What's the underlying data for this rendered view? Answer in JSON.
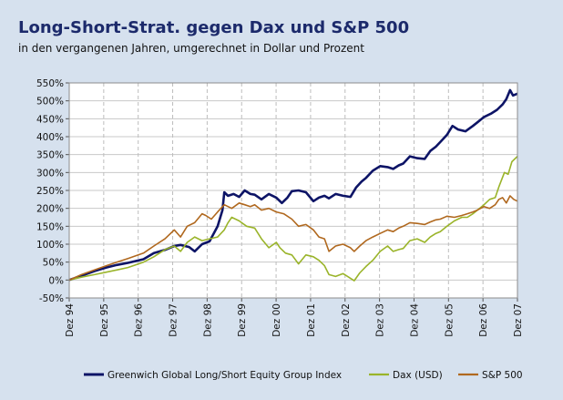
{
  "chart_data": {
    "type": "line",
    "title": "Long-Short-Strat. gegen Dax und S&P 500",
    "subtitle": "in den vergangenen Jahren, umgerechnet in Dollar und Prozent",
    "xlabel": "",
    "ylabel": "",
    "x_ticks": [
      "Dez 94",
      "Dez 95",
      "Dez 96",
      "Dez 97",
      "Dez 98",
      "Dez 99",
      "Dez 00",
      "Dez 01",
      "Dez 02",
      "Dez 03",
      "Dez 04",
      "Dez 05",
      "Dez 06",
      "Dez 07"
    ],
    "y_ticks": [
      "-50%",
      "0%",
      "50%",
      "100%",
      "150%",
      "200%",
      "250%",
      "300%",
      "350%",
      "400%",
      "450%",
      "500%",
      "550%"
    ],
    "xlim": [
      1994.92,
      2007.0
    ],
    "ylim": [
      -50,
      550
    ],
    "grid": {
      "horizontal": "solid",
      "vertical": "dashed"
    },
    "legend": "bottom",
    "series": [
      {
        "name": "Greenwich Global Long/Short Equity Group Index",
        "color": "#0d1466",
        "points": [
          [
            1994.92,
            0
          ],
          [
            1995.25,
            12
          ],
          [
            1995.6,
            25
          ],
          [
            1995.92,
            35
          ],
          [
            1996.2,
            42
          ],
          [
            1996.5,
            48
          ],
          [
            1996.92,
            58
          ],
          [
            1997.2,
            75
          ],
          [
            1997.5,
            84
          ],
          [
            1997.75,
            95
          ],
          [
            1997.92,
            98
          ],
          [
            1998.15,
            92
          ],
          [
            1998.3,
            80
          ],
          [
            1998.5,
            100
          ],
          [
            1998.7,
            108
          ],
          [
            1998.92,
            150
          ],
          [
            1999.05,
            195
          ],
          [
            1999.1,
            245
          ],
          [
            1999.2,
            235
          ],
          [
            1999.35,
            240
          ],
          [
            1999.5,
            232
          ],
          [
            1999.65,
            250
          ],
          [
            1999.8,
            240
          ],
          [
            1999.92,
            238
          ],
          [
            2000.1,
            225
          ],
          [
            2000.3,
            240
          ],
          [
            2000.5,
            230
          ],
          [
            2000.65,
            215
          ],
          [
            2000.8,
            230
          ],
          [
            2000.92,
            248
          ],
          [
            2001.1,
            250
          ],
          [
            2001.3,
            245
          ],
          [
            2001.5,
            220
          ],
          [
            2001.65,
            230
          ],
          [
            2001.8,
            235
          ],
          [
            2001.92,
            228
          ],
          [
            2002.1,
            240
          ],
          [
            2002.3,
            235
          ],
          [
            2002.5,
            232
          ],
          [
            2002.65,
            258
          ],
          [
            2002.8,
            275
          ],
          [
            2002.92,
            285
          ],
          [
            2003.1,
            305
          ],
          [
            2003.3,
            318
          ],
          [
            2003.5,
            315
          ],
          [
            2003.65,
            310
          ],
          [
            2003.8,
            320
          ],
          [
            2003.92,
            325
          ],
          [
            2004.1,
            345
          ],
          [
            2004.3,
            340
          ],
          [
            2004.5,
            338
          ],
          [
            2004.65,
            360
          ],
          [
            2004.8,
            372
          ],
          [
            2004.92,
            385
          ],
          [
            2005.1,
            405
          ],
          [
            2005.25,
            430
          ],
          [
            2005.4,
            420
          ],
          [
            2005.6,
            415
          ],
          [
            2005.8,
            430
          ],
          [
            2005.92,
            440
          ],
          [
            2006.1,
            455
          ],
          [
            2006.3,
            465
          ],
          [
            2006.45,
            475
          ],
          [
            2006.6,
            490
          ],
          [
            2006.7,
            505
          ],
          [
            2006.8,
            530
          ],
          [
            2006.88,
            515
          ],
          [
            2007.0,
            520
          ]
        ]
      },
      {
        "name": "Dax (USD)",
        "color": "#9ab42a",
        "points": [
          [
            1994.92,
            0
          ],
          [
            1995.25,
            8
          ],
          [
            1995.6,
            15
          ],
          [
            1995.92,
            22
          ],
          [
            1996.2,
            28
          ],
          [
            1996.5,
            35
          ],
          [
            1996.92,
            50
          ],
          [
            1997.2,
            65
          ],
          [
            1997.5,
            85
          ],
          [
            1997.75,
            95
          ],
          [
            1997.92,
            80
          ],
          [
            1998.1,
            105
          ],
          [
            1998.3,
            120
          ],
          [
            1998.5,
            110
          ],
          [
            1998.7,
            115
          ],
          [
            1998.92,
            120
          ],
          [
            1999.1,
            140
          ],
          [
            1999.2,
            160
          ],
          [
            1999.3,
            175
          ],
          [
            1999.5,
            165
          ],
          [
            1999.7,
            150
          ],
          [
            1999.92,
            145
          ],
          [
            2000.1,
            115
          ],
          [
            2000.3,
            90
          ],
          [
            2000.5,
            105
          ],
          [
            2000.6,
            90
          ],
          [
            2000.75,
            75
          ],
          [
            2000.92,
            70
          ],
          [
            2001.1,
            45
          ],
          [
            2001.3,
            70
          ],
          [
            2001.5,
            65
          ],
          [
            2001.65,
            55
          ],
          [
            2001.8,
            40
          ],
          [
            2001.92,
            15
          ],
          [
            2002.1,
            10
          ],
          [
            2002.3,
            18
          ],
          [
            2002.5,
            5
          ],
          [
            2002.6,
            -2
          ],
          [
            2002.75,
            20
          ],
          [
            2002.92,
            38
          ],
          [
            2003.1,
            55
          ],
          [
            2003.3,
            80
          ],
          [
            2003.5,
            95
          ],
          [
            2003.65,
            80
          ],
          [
            2003.8,
            85
          ],
          [
            2003.92,
            88
          ],
          [
            2004.1,
            110
          ],
          [
            2004.3,
            115
          ],
          [
            2004.5,
            105
          ],
          [
            2004.65,
            120
          ],
          [
            2004.8,
            130
          ],
          [
            2004.92,
            135
          ],
          [
            2005.1,
            150
          ],
          [
            2005.3,
            165
          ],
          [
            2005.5,
            175
          ],
          [
            2005.65,
            175
          ],
          [
            2005.8,
            185
          ],
          [
            2005.92,
            195
          ],
          [
            2006.1,
            210
          ],
          [
            2006.25,
            225
          ],
          [
            2006.4,
            230
          ],
          [
            2006.5,
            260
          ],
          [
            2006.65,
            300
          ],
          [
            2006.75,
            295
          ],
          [
            2006.85,
            330
          ],
          [
            2007.0,
            345
          ]
        ]
      },
      {
        "name": "S&P 500",
        "color": "#b0681e",
        "points": [
          [
            1994.92,
            0
          ],
          [
            1995.25,
            15
          ],
          [
            1995.6,
            28
          ],
          [
            1995.92,
            40
          ],
          [
            1996.2,
            50
          ],
          [
            1996.5,
            60
          ],
          [
            1996.92,
            75
          ],
          [
            1997.2,
            95
          ],
          [
            1997.5,
            115
          ],
          [
            1997.75,
            140
          ],
          [
            1997.92,
            120
          ],
          [
            1998.1,
            150
          ],
          [
            1998.3,
            160
          ],
          [
            1998.5,
            185
          ],
          [
            1998.6,
            180
          ],
          [
            1998.75,
            170
          ],
          [
            1998.92,
            190
          ],
          [
            1999.1,
            210
          ],
          [
            1999.3,
            200
          ],
          [
            1999.5,
            215
          ],
          [
            1999.65,
            210
          ],
          [
            1999.8,
            205
          ],
          [
            1999.92,
            210
          ],
          [
            2000.1,
            195
          ],
          [
            2000.3,
            200
          ],
          [
            2000.5,
            190
          ],
          [
            2000.7,
            185
          ],
          [
            2000.92,
            170
          ],
          [
            2001.1,
            150
          ],
          [
            2001.3,
            155
          ],
          [
            2001.5,
            140
          ],
          [
            2001.65,
            120
          ],
          [
            2001.8,
            115
          ],
          [
            2001.92,
            80
          ],
          [
            2002.1,
            95
          ],
          [
            2002.3,
            100
          ],
          [
            2002.5,
            90
          ],
          [
            2002.6,
            80
          ],
          [
            2002.75,
            95
          ],
          [
            2002.92,
            110
          ],
          [
            2003.1,
            120
          ],
          [
            2003.3,
            130
          ],
          [
            2003.5,
            140
          ],
          [
            2003.65,
            135
          ],
          [
            2003.8,
            145
          ],
          [
            2003.92,
            150
          ],
          [
            2004.1,
            160
          ],
          [
            2004.3,
            158
          ],
          [
            2004.5,
            155
          ],
          [
            2004.65,
            162
          ],
          [
            2004.8,
            168
          ],
          [
            2004.92,
            170
          ],
          [
            2005.1,
            178
          ],
          [
            2005.3,
            175
          ],
          [
            2005.5,
            180
          ],
          [
            2005.65,
            185
          ],
          [
            2005.8,
            190
          ],
          [
            2005.92,
            195
          ],
          [
            2006.1,
            205
          ],
          [
            2006.25,
            200
          ],
          [
            2006.4,
            210
          ],
          [
            2006.5,
            225
          ],
          [
            2006.6,
            230
          ],
          [
            2006.7,
            215
          ],
          [
            2006.8,
            235
          ],
          [
            2006.9,
            225
          ],
          [
            2007.0,
            220
          ]
        ]
      }
    ]
  }
}
